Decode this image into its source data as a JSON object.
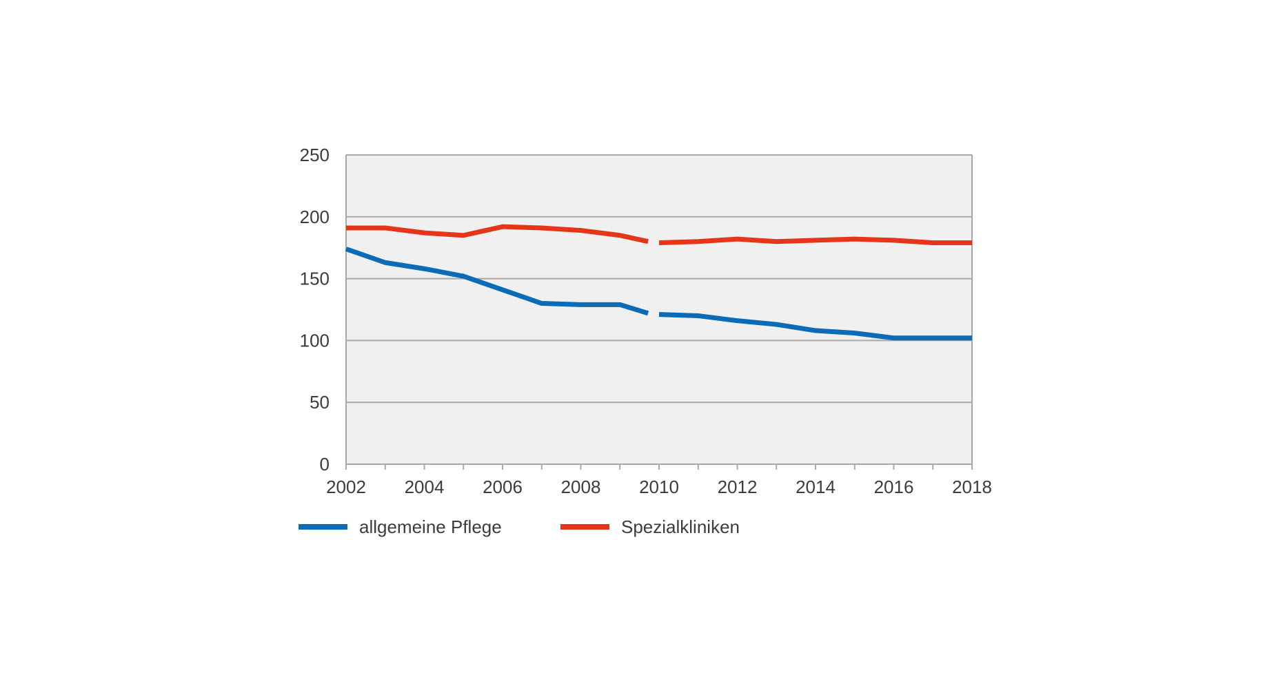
{
  "chart_data": {
    "type": "line",
    "title": "",
    "xlabel": "",
    "ylabel": "",
    "x": [
      2002,
      2003,
      2004,
      2005,
      2006,
      2007,
      2008,
      2009,
      2010,
      2011,
      2012,
      2013,
      2014,
      2015,
      2016,
      2017,
      2018
    ],
    "x_tick_labels": [
      "2002",
      "2004",
      "2006",
      "2008",
      "2010",
      "2012",
      "2014",
      "2016",
      "2018"
    ],
    "y_tick_labels": [
      "0",
      "50",
      "100",
      "150",
      "200",
      "250"
    ],
    "xlim": [
      2002,
      2018
    ],
    "ylim": [
      0,
      250
    ],
    "grid": true,
    "series_break_between": [
      2009,
      2010
    ],
    "legend_position": "bottom-left",
    "plot_background": "#f0f0f0",
    "series": [
      {
        "name": "allgemeine Pflege",
        "color": "#0b6bb6",
        "values": [
          174,
          163,
          158,
          152,
          141,
          130,
          129,
          129,
          121,
          120,
          116,
          113,
          108,
          106,
          102,
          102,
          102
        ]
      },
      {
        "name": "Spezialkliniken",
        "color": "#e5361a",
        "values": [
          191,
          191,
          187,
          185,
          192,
          191,
          189,
          185,
          179,
          180,
          182,
          180,
          181,
          182,
          181,
          179,
          179
        ]
      }
    ]
  }
}
